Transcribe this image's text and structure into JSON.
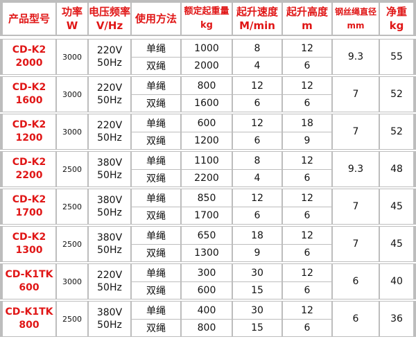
{
  "header": {
    "model": [
      "产品型号"
    ],
    "power": [
      "功率",
      "W"
    ],
    "voltage": [
      "电压频率",
      "V/Hz"
    ],
    "usage": [
      "使用方法"
    ],
    "load": [
      "额定起重量",
      "kg"
    ],
    "speed": [
      "起升速度",
      "M/min"
    ],
    "height": [
      "起升高度",
      "m"
    ],
    "rope": [
      "钢丝绳直径",
      "mm"
    ],
    "weight": [
      "净重",
      "kg"
    ]
  },
  "rows": [
    {
      "model": [
        "CD-K2",
        "2000"
      ],
      "power": "3000",
      "voltage": [
        "220V",
        "50Hz"
      ],
      "rope": "9.3",
      "weight": "55",
      "modes": [
        {
          "usage": "单绳",
          "load": "1000",
          "speed": "8",
          "height": "12"
        },
        {
          "usage": "双绳",
          "load": "2000",
          "speed": "4",
          "height": "6"
        }
      ]
    },
    {
      "model": [
        "CD-K2",
        "1600"
      ],
      "power": "3000",
      "voltage": [
        "220V",
        "50Hz"
      ],
      "rope": "7",
      "weight": "52",
      "modes": [
        {
          "usage": "单绳",
          "load": "800",
          "speed": "12",
          "height": "12"
        },
        {
          "usage": "双绳",
          "load": "1600",
          "speed": "6",
          "height": "6"
        }
      ]
    },
    {
      "model": [
        "CD-K2",
        "1200"
      ],
      "power": "3000",
      "voltage": [
        "220V",
        "50Hz"
      ],
      "rope": "7",
      "weight": "52",
      "modes": [
        {
          "usage": "单绳",
          "load": "600",
          "speed": "12",
          "height": "18"
        },
        {
          "usage": "双绳",
          "load": "1200",
          "speed": "6",
          "height": "9"
        }
      ]
    },
    {
      "model": [
        "CD-K2",
        "2200"
      ],
      "power": "2500",
      "voltage": [
        "380V",
        "50Hz"
      ],
      "rope": "9.3",
      "weight": "48",
      "modes": [
        {
          "usage": "单绳",
          "load": "1100",
          "speed": "8",
          "height": "12"
        },
        {
          "usage": "双绳",
          "load": "2200",
          "speed": "4",
          "height": "6"
        }
      ]
    },
    {
      "model": [
        "CD-K2",
        "1700"
      ],
      "power": "2500",
      "voltage": [
        "380V",
        "50Hz"
      ],
      "rope": "7",
      "weight": "45",
      "modes": [
        {
          "usage": "单绳",
          "load": "850",
          "speed": "12",
          "height": "12"
        },
        {
          "usage": "双绳",
          "load": "1700",
          "speed": "6",
          "height": "6"
        }
      ]
    },
    {
      "model": [
        "CD-K2",
        "1300"
      ],
      "power": "2500",
      "voltage": [
        "380V",
        "50Hz"
      ],
      "rope": "7",
      "weight": "45",
      "modes": [
        {
          "usage": "单绳",
          "load": "650",
          "speed": "18",
          "height": "12"
        },
        {
          "usage": "双绳",
          "load": "1300",
          "speed": "9",
          "height": "6"
        }
      ]
    },
    {
      "model": [
        "CD-K1TK",
        "600"
      ],
      "power": "3000",
      "voltage": [
        "220V",
        "50Hz"
      ],
      "rope": "6",
      "weight": "40",
      "modes": [
        {
          "usage": "单绳",
          "load": "300",
          "speed": "30",
          "height": "12"
        },
        {
          "usage": "双绳",
          "load": "600",
          "speed": "15",
          "height": "6"
        }
      ]
    },
    {
      "model": [
        "CD-K1TK",
        "800"
      ],
      "power": "2500",
      "voltage": [
        "380V",
        "50Hz"
      ],
      "rope": "6",
      "weight": "36",
      "modes": [
        {
          "usage": "单绳",
          "load": "400",
          "speed": "30",
          "height": "12"
        },
        {
          "usage": "双绳",
          "load": "800",
          "speed": "15",
          "height": "6"
        }
      ]
    }
  ],
  "colors": {
    "accent": "#e01616",
    "grid": "#bdbdbd",
    "text": "#111111",
    "background": "#ffffff"
  }
}
